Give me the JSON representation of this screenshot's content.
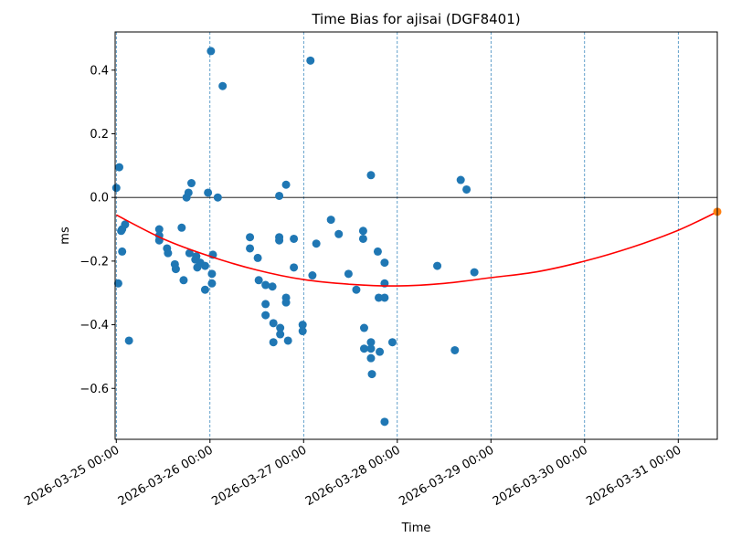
{
  "chart_data": {
    "type": "scatter",
    "title": "Time Bias for ajisai (DGF8401)",
    "xlabel": "Time",
    "ylabel": "ms",
    "xlim": [
      "2026-03-24 23:42",
      "2026-03-31 10:00"
    ],
    "ylim": [
      -0.76,
      0.52
    ],
    "x_ticks": [
      "2026-03-25 00:00",
      "2026-03-26 00:00",
      "2026-03-27 00:00",
      "2026-03-28 00:00",
      "2026-03-29 00:00",
      "2026-03-30 00:00",
      "2026-03-31 00:00"
    ],
    "y_ticks": [
      "0.4",
      "0.2",
      "0.0",
      "−0.2",
      "−0.4",
      "−0.6"
    ],
    "y_tick_values": [
      0.4,
      0.2,
      0.0,
      -0.2,
      -0.4,
      -0.6
    ],
    "vertical_gridlines": "dashed at each day",
    "zero_line": true,
    "colors": {
      "points": "#1f77b4",
      "fit": "#ff0000",
      "endpoint": "#ff7f0e",
      "grid": "#1f77b4"
    },
    "points": [
      {
        "x": "2026-03-25 00:00",
        "y": 0.03
      },
      {
        "x": "2026-03-25 00:30",
        "y": -0.27
      },
      {
        "x": "2026-03-25 00:45",
        "y": 0.095
      },
      {
        "x": "2026-03-25 01:15",
        "y": -0.105
      },
      {
        "x": "2026-03-25 01:30",
        "y": -0.1
      },
      {
        "x": "2026-03-25 01:30",
        "y": -0.17
      },
      {
        "x": "2026-03-25 02:15",
        "y": -0.085
      },
      {
        "x": "2026-03-25 03:15",
        "y": -0.45
      },
      {
        "x": "2026-03-25 11:00",
        "y": -0.1
      },
      {
        "x": "2026-03-25 11:00",
        "y": -0.12
      },
      {
        "x": "2026-03-25 11:00",
        "y": -0.135
      },
      {
        "x": "2026-03-25 13:00",
        "y": -0.16
      },
      {
        "x": "2026-03-25 13:15",
        "y": -0.175
      },
      {
        "x": "2026-03-25 15:00",
        "y": -0.21
      },
      {
        "x": "2026-03-25 15:15",
        "y": -0.225
      },
      {
        "x": "2026-03-25 16:45",
        "y": -0.095
      },
      {
        "x": "2026-03-25 17:15",
        "y": -0.26
      },
      {
        "x": "2026-03-25 18:00",
        "y": 0.0
      },
      {
        "x": "2026-03-25 18:30",
        "y": 0.015
      },
      {
        "x": "2026-03-25 18:45",
        "y": -0.175
      },
      {
        "x": "2026-03-25 19:15",
        "y": 0.045
      },
      {
        "x": "2026-03-25 20:15",
        "y": -0.195
      },
      {
        "x": "2026-03-25 20:30",
        "y": -0.185
      },
      {
        "x": "2026-03-25 20:45",
        "y": -0.22
      },
      {
        "x": "2026-03-25 21:30",
        "y": -0.205
      },
      {
        "x": "2026-03-25 22:45",
        "y": -0.215
      },
      {
        "x": "2026-03-25 22:45",
        "y": -0.29
      },
      {
        "x": "2026-03-25 23:30",
        "y": 0.015
      },
      {
        "x": "2026-03-26 00:15",
        "y": 0.46
      },
      {
        "x": "2026-03-26 00:30",
        "y": -0.24
      },
      {
        "x": "2026-03-26 00:30",
        "y": -0.27
      },
      {
        "x": "2026-03-26 00:45",
        "y": -0.18
      },
      {
        "x": "2026-03-26 02:00",
        "y": 0.0
      },
      {
        "x": "2026-03-26 03:15",
        "y": 0.35
      },
      {
        "x": "2026-03-26 10:15",
        "y": -0.125
      },
      {
        "x": "2026-03-26 10:15",
        "y": -0.16
      },
      {
        "x": "2026-03-26 12:15",
        "y": -0.19
      },
      {
        "x": "2026-03-26 12:30",
        "y": -0.26
      },
      {
        "x": "2026-03-26 14:15",
        "y": -0.275
      },
      {
        "x": "2026-03-26 14:15",
        "y": -0.335
      },
      {
        "x": "2026-03-26 14:15",
        "y": -0.37
      },
      {
        "x": "2026-03-26 16:00",
        "y": -0.28
      },
      {
        "x": "2026-03-26 16:15",
        "y": -0.395
      },
      {
        "x": "2026-03-26 16:15",
        "y": -0.455
      },
      {
        "x": "2026-03-26 17:45",
        "y": 0.005
      },
      {
        "x": "2026-03-26 17:45",
        "y": -0.125
      },
      {
        "x": "2026-03-26 17:45",
        "y": -0.135
      },
      {
        "x": "2026-03-26 18:00",
        "y": -0.41
      },
      {
        "x": "2026-03-26 18:00",
        "y": -0.43
      },
      {
        "x": "2026-03-26 19:30",
        "y": 0.04
      },
      {
        "x": "2026-03-26 19:30",
        "y": -0.315
      },
      {
        "x": "2026-03-26 19:30",
        "y": -0.33
      },
      {
        "x": "2026-03-26 20:00",
        "y": -0.45
      },
      {
        "x": "2026-03-26 21:30",
        "y": -0.13
      },
      {
        "x": "2026-03-26 21:30",
        "y": -0.22
      },
      {
        "x": "2026-03-26 23:45",
        "y": -0.4
      },
      {
        "x": "2026-03-26 23:45",
        "y": -0.42
      },
      {
        "x": "2026-03-27 01:45",
        "y": 0.43
      },
      {
        "x": "2026-03-27 02:15",
        "y": -0.245
      },
      {
        "x": "2026-03-27 03:15",
        "y": -0.145
      },
      {
        "x": "2026-03-27 07:00",
        "y": -0.07
      },
      {
        "x": "2026-03-27 09:00",
        "y": -0.115
      },
      {
        "x": "2026-03-27 11:30",
        "y": -0.24
      },
      {
        "x": "2026-03-27 13:30",
        "y": -0.29
      },
      {
        "x": "2026-03-27 15:15",
        "y": -0.105
      },
      {
        "x": "2026-03-27 15:15",
        "y": -0.13
      },
      {
        "x": "2026-03-27 15:30",
        "y": -0.41
      },
      {
        "x": "2026-03-27 15:30",
        "y": -0.475
      },
      {
        "x": "2026-03-27 17:15",
        "y": 0.07
      },
      {
        "x": "2026-03-27 17:15",
        "y": -0.455
      },
      {
        "x": "2026-03-27 17:15",
        "y": -0.475
      },
      {
        "x": "2026-03-27 17:15",
        "y": -0.505
      },
      {
        "x": "2026-03-27 17:30",
        "y": -0.555
      },
      {
        "x": "2026-03-27 19:00",
        "y": -0.17
      },
      {
        "x": "2026-03-27 19:15",
        "y": -0.315
      },
      {
        "x": "2026-03-27 19:30",
        "y": -0.485
      },
      {
        "x": "2026-03-27 20:45",
        "y": -0.205
      },
      {
        "x": "2026-03-27 20:45",
        "y": -0.27
      },
      {
        "x": "2026-03-27 20:45",
        "y": -0.315
      },
      {
        "x": "2026-03-27 20:45",
        "y": -0.705
      },
      {
        "x": "2026-03-27 22:45",
        "y": -0.455
      },
      {
        "x": "2026-03-28 10:15",
        "y": -0.215
      },
      {
        "x": "2026-03-28 14:45",
        "y": -0.48
      },
      {
        "x": "2026-03-28 16:15",
        "y": 0.055
      },
      {
        "x": "2026-03-28 17:45",
        "y": 0.025
      },
      {
        "x": "2026-03-28 19:45",
        "y": -0.235
      }
    ],
    "fit_curve": {
      "type": "quadratic",
      "x": [
        "2026-03-25 00:00",
        "2026-03-25 12:00",
        "2026-03-26 00:00",
        "2026-03-26 12:00",
        "2026-03-27 00:00",
        "2026-03-27 12:00",
        "2026-03-28 00:00",
        "2026-03-28 12:00",
        "2026-03-29 00:00",
        "2026-03-29 12:00",
        "2026-03-30 00:00",
        "2026-03-30 12:00",
        "2026-03-31 00:00",
        "2026-03-31 10:00"
      ],
      "y": [
        -0.055,
        -0.13,
        -0.185,
        -0.228,
        -0.258,
        -0.273,
        -0.278,
        -0.27,
        -0.252,
        -0.233,
        -0.2,
        -0.157,
        -0.103,
        -0.045
      ]
    },
    "endpoint": {
      "x": "2026-03-31 10:00",
      "y": -0.045
    }
  }
}
